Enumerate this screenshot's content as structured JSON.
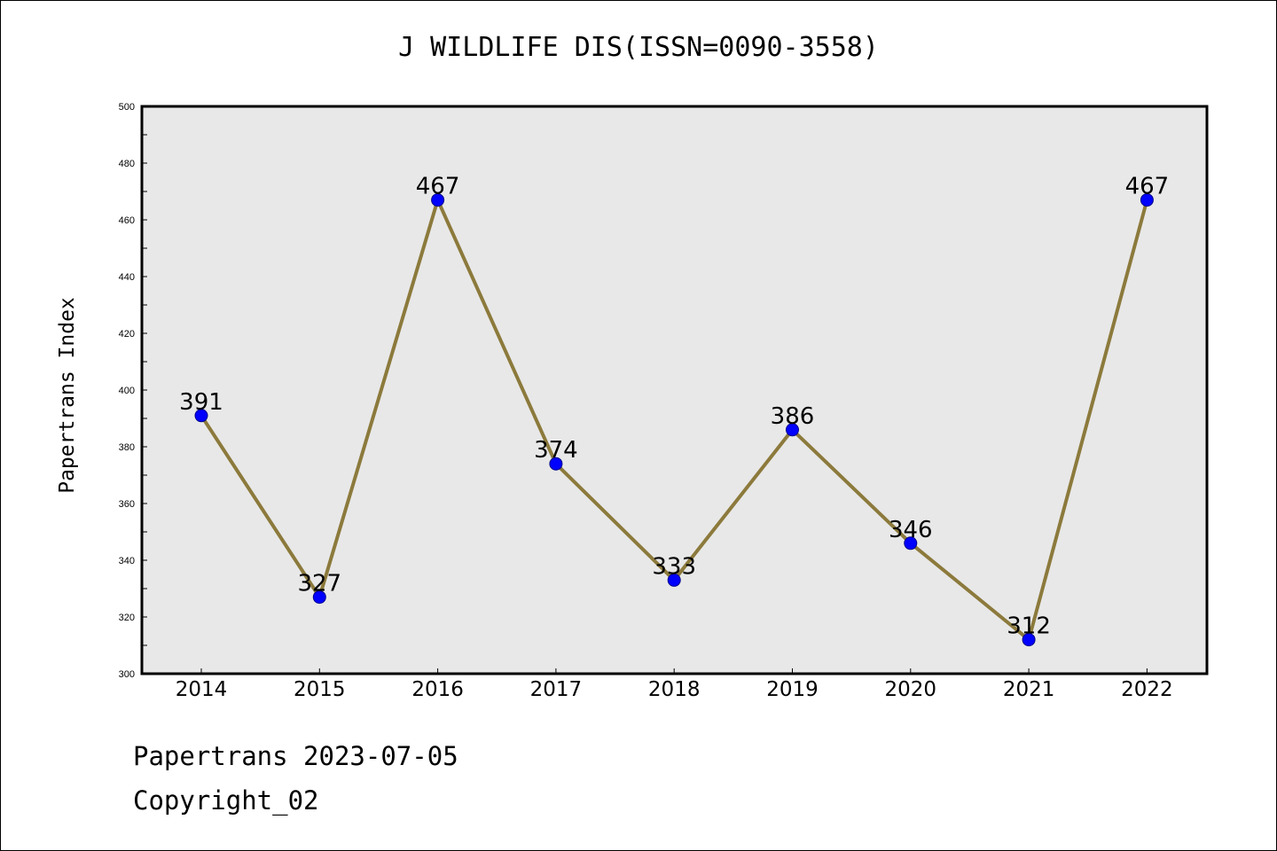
{
  "chart_data": {
    "type": "line",
    "title": "J WILDLIFE DIS(ISSN=0090-3558)",
    "xlabel": "",
    "ylabel": "Papertrans Index",
    "x": [
      "2014",
      "2015",
      "2016",
      "2017",
      "2018",
      "2019",
      "2020",
      "2021",
      "2022"
    ],
    "values": [
      391,
      327,
      467,
      374,
      333,
      386,
      346,
      312,
      467
    ],
    "data_labels": [
      "391",
      "327",
      "467",
      "374",
      "333",
      "386",
      "346",
      "312",
      "467"
    ],
    "ylim": [
      300,
      500
    ],
    "yticks": [
      "300",
      "320",
      "340",
      "360",
      "380",
      "400",
      "420",
      "440",
      "460",
      "480",
      "500"
    ],
    "grid": false,
    "line_color": "#8c7a3c",
    "marker_color": "#0000ff",
    "plot_background": "#e8e8e8"
  },
  "footer": {
    "date_text": "Papertrans 2023-07-05",
    "copyright_text": "Copyright_02"
  }
}
